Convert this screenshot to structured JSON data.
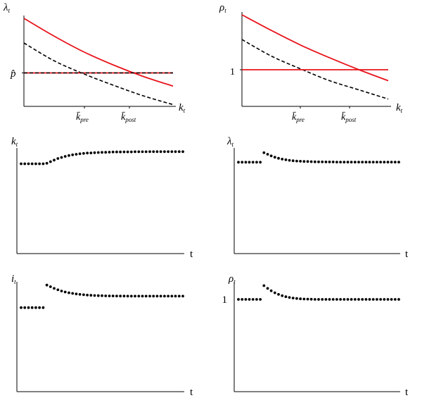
{
  "chart_data": [
    {
      "type": "line",
      "ylabel": "λ",
      "ylabel_sub": "t",
      "xlabel": "k",
      "xlabel_sub": "t",
      "y_tick_label": "p̂",
      "x_ticks": [
        {
          "base": "k̄",
          "sub": "pre"
        },
        {
          "base": "k̄",
          "sub": "post"
        }
      ],
      "xlim": [
        0,
        1
      ],
      "ylim": [
        0,
        1
      ],
      "grid": false,
      "legend": "none",
      "series": [
        {
          "style": "solid",
          "color": "#e8141c",
          "x": [
            0,
            0.2,
            0.4,
            0.6,
            0.8,
            1.0
          ],
          "y": [
            1.0,
            0.8,
            0.62,
            0.47,
            0.34,
            0.23
          ]
        },
        {
          "style": "dashed",
          "color": "#000000",
          "x": [
            0,
            0.2,
            0.4,
            0.6,
            0.8,
            1.0
          ],
          "y": [
            0.72,
            0.52,
            0.37,
            0.24,
            0.12,
            0.02
          ]
        },
        {
          "style": "solid",
          "color": "#e8141c",
          "x": [
            0,
            1.0
          ],
          "y": [
            0.38,
            0.38
          ]
        },
        {
          "style": "dashed",
          "color": "#000000",
          "x": [
            0,
            1.0
          ],
          "y": [
            0.38,
            0.38
          ]
        }
      ]
    },
    {
      "type": "line",
      "ylabel": "ρ",
      "ylabel_sub": "t",
      "xlabel": "k",
      "xlabel_sub": "t",
      "y_tick_label": "1",
      "x_ticks": [
        {
          "base": "k̄",
          "sub": "pre"
        },
        {
          "base": "k̄",
          "sub": "post"
        }
      ],
      "xlim": [
        0,
        1
      ],
      "ylim": [
        0,
        1
      ],
      "grid": false,
      "legend": "none",
      "series": [
        {
          "style": "solid",
          "color": "#e8141c",
          "x": [
            0,
            0.2,
            0.4,
            0.6,
            0.8,
            1.0
          ],
          "y": [
            1.0,
            0.83,
            0.67,
            0.53,
            0.4,
            0.28
          ]
        },
        {
          "style": "dashed",
          "color": "#000000",
          "x": [
            0,
            0.2,
            0.4,
            0.6,
            0.8,
            1.0
          ],
          "y": [
            0.73,
            0.55,
            0.41,
            0.28,
            0.18,
            0.08
          ]
        },
        {
          "style": "solid",
          "color": "#e8141c",
          "x": [
            0,
            1.0
          ],
          "y": [
            0.4,
            0.4
          ]
        }
      ]
    },
    {
      "type": "scatter",
      "ylabel": "k",
      "ylabel_sub": "t",
      "xlabel": "t",
      "ylim": [
        0,
        1
      ],
      "grid": false,
      "legend": "none",
      "points": [
        0.85,
        0.85,
        0.85,
        0.85,
        0.85,
        0.85,
        0.85,
        0.855,
        0.87,
        0.885,
        0.9,
        0.91,
        0.92,
        0.928,
        0.935,
        0.94,
        0.945,
        0.948,
        0.951,
        0.953,
        0.955,
        0.957,
        0.958,
        0.959,
        0.96,
        0.961,
        0.962,
        0.962,
        0.963,
        0.963,
        0.963,
        0.964,
        0.964,
        0.964,
        0.964,
        0.965,
        0.965,
        0.965,
        0.965,
        0.965,
        0.965,
        0.965,
        0.965,
        0.965,
        0.965
      ]
    },
    {
      "type": "scatter",
      "ylabel": "λ",
      "ylabel_sub": "t",
      "xlabel": "t",
      "ylim": [
        0,
        1
      ],
      "grid": false,
      "legend": "none",
      "points": [
        0.865,
        0.865,
        0.865,
        0.865,
        0.865,
        0.865,
        0.865,
        0.955,
        0.94,
        0.925,
        0.912,
        0.902,
        0.894,
        0.888,
        0.883,
        0.879,
        0.876,
        0.874,
        0.872,
        0.871,
        0.87,
        0.869,
        0.868,
        0.868,
        0.867,
        0.867,
        0.867,
        0.866,
        0.866,
        0.866,
        0.866,
        0.866,
        0.866,
        0.866,
        0.866,
        0.866,
        0.866,
        0.866,
        0.866,
        0.866,
        0.866,
        0.866,
        0.866,
        0.866,
        0.866
      ]
    },
    {
      "type": "scatter",
      "ylabel": "i",
      "ylabel_sub": "t",
      "xlabel": "t",
      "ylim": [
        0,
        1
      ],
      "grid": false,
      "legend": "none",
      "points": [
        0.765,
        0.765,
        0.765,
        0.765,
        0.765,
        0.765,
        0.765,
        0.97,
        0.955,
        0.94,
        0.927,
        0.916,
        0.907,
        0.9,
        0.894,
        0.889,
        0.885,
        0.882,
        0.879,
        0.877,
        0.875,
        0.874,
        0.873,
        0.872,
        0.871,
        0.871,
        0.87,
        0.87,
        0.87,
        0.869,
        0.869,
        0.869,
        0.869,
        0.869,
        0.869,
        0.869,
        0.869,
        0.869,
        0.869,
        0.869,
        0.869,
        0.869,
        0.869,
        0.869,
        0.869
      ]
    },
    {
      "type": "scatter",
      "ylabel": "ρ",
      "ylabel_sub": "t",
      "xlabel": "t",
      "y_tick_label": "1",
      "ylim": [
        0,
        1
      ],
      "grid": false,
      "legend": "none",
      "points": [
        0.84,
        0.84,
        0.84,
        0.84,
        0.84,
        0.84,
        0.84,
        0.965,
        0.94,
        0.918,
        0.9,
        0.885,
        0.873,
        0.864,
        0.857,
        0.852,
        0.848,
        0.845,
        0.843,
        0.842,
        0.841,
        0.84,
        0.84,
        0.84,
        0.84,
        0.84,
        0.84,
        0.84,
        0.84,
        0.84,
        0.84,
        0.84,
        0.84,
        0.84,
        0.84,
        0.84,
        0.84,
        0.84,
        0.84,
        0.84,
        0.84,
        0.84,
        0.84,
        0.84,
        0.84
      ]
    }
  ]
}
